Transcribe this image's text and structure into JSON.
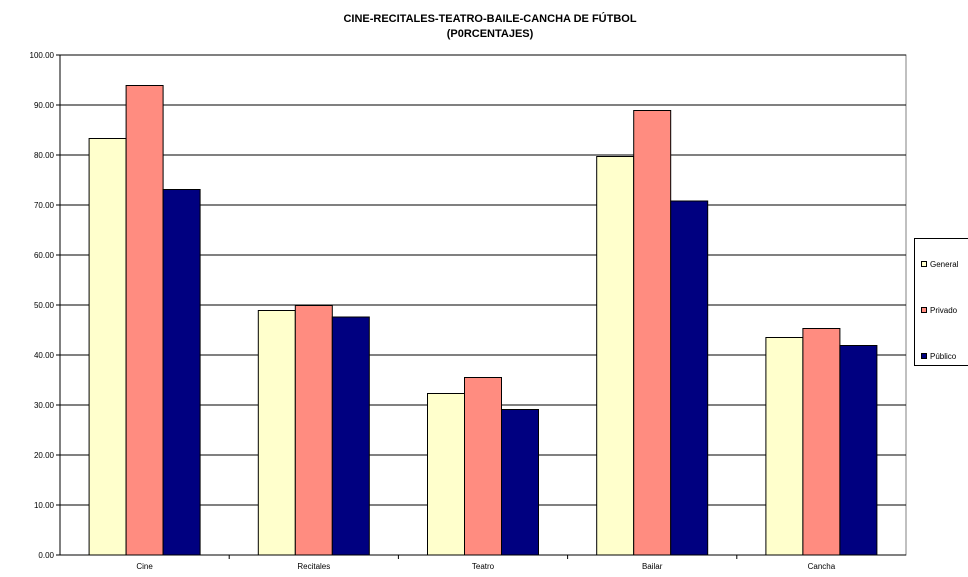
{
  "chart_data": {
    "type": "bar",
    "title_line1": "CINE-RECITALES-TEATRO-BAILE-CANCHA DE FÚTBOL",
    "title_line2": "(P0RCENTAJES)",
    "categories": [
      "Cine",
      "Recitales",
      "Teatro",
      "Bailar",
      "Cancha"
    ],
    "series": [
      {
        "name": "General",
        "color": "#ffffcc",
        "values": [
          83.3,
          48.9,
          32.3,
          79.7,
          43.5
        ]
      },
      {
        "name": "Privado",
        "color": "#ff8c80",
        "values": [
          93.9,
          49.9,
          35.5,
          88.9,
          45.3
        ]
      },
      {
        "name": "Público",
        "color": "#000080",
        "values": [
          73.1,
          47.6,
          29.1,
          70.8,
          41.9
        ]
      }
    ],
    "ylim": [
      0,
      100
    ],
    "y_ticks": [
      "0.00",
      "10.00",
      "20.00",
      "30.00",
      "40.00",
      "50.00",
      "60.00",
      "70.00",
      "80.00",
      "90.00",
      "100.00"
    ],
    "grid": true,
    "legend_position": "right",
    "xlabel": "",
    "ylabel": ""
  }
}
